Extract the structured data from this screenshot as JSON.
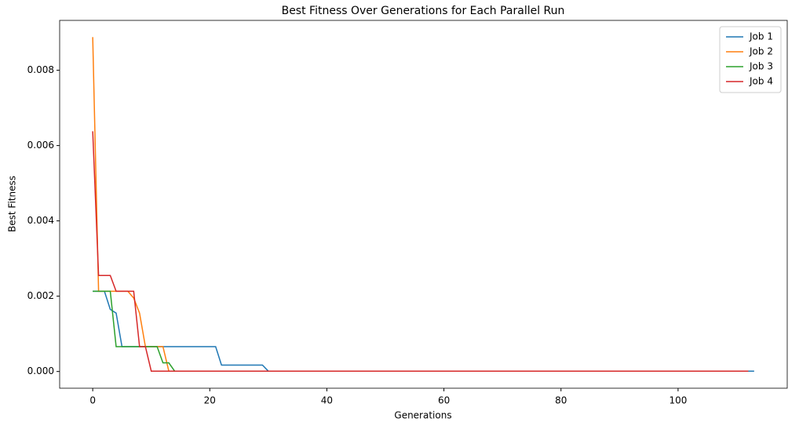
{
  "chart_data": {
    "type": "line",
    "title": "Best Fitness Over Generations for Each Parallel Run",
    "x_label": "Generations",
    "y_label": "Best Fitness",
    "xlim": [
      -5.65,
      118.65
    ],
    "ylim": [
      -0.000444,
      0.009324
    ],
    "xticks": [
      0,
      20,
      40,
      60,
      80,
      100
    ],
    "yticks": [
      {
        "value": 0,
        "label": "0.000"
      },
      {
        "value": 0.002,
        "label": "0.002"
      },
      {
        "value": 0.004,
        "label": "0.004"
      },
      {
        "value": 0.006,
        "label": "0.006"
      },
      {
        "value": 0.008,
        "label": "0.008"
      }
    ],
    "legend": "upper right",
    "series": [
      {
        "name": "Job 1",
        "color": "#1f77b4",
        "x": [
          0,
          2,
          3,
          4,
          5,
          21,
          22,
          29,
          30,
          113
        ],
        "values": [
          0.00213,
          0.00213,
          0.00165,
          0.00155,
          0.00066,
          0.00066,
          0.00017,
          0.00017,
          1e-05,
          1e-05
        ]
      },
      {
        "name": "Job 2",
        "color": "#ff7f0e",
        "x": [
          0,
          1,
          6,
          7,
          8,
          9,
          12,
          13,
          110
        ],
        "values": [
          0.00888,
          0.00213,
          0.00213,
          0.00195,
          0.00155,
          0.00066,
          0.00066,
          1e-05,
          1e-05
        ]
      },
      {
        "name": "Job 3",
        "color": "#2ca02c",
        "x": [
          0,
          3,
          4,
          11,
          12,
          13,
          14,
          112
        ],
        "values": [
          0.00213,
          0.00213,
          0.00066,
          0.00066,
          0.00023,
          0.00023,
          1e-05,
          1e-05
        ]
      },
      {
        "name": "Job 4",
        "color": "#d62728",
        "x": [
          0,
          1,
          3,
          4,
          7,
          8,
          9,
          10,
          112
        ],
        "values": [
          0.00638,
          0.00255,
          0.00255,
          0.00213,
          0.00213,
          0.00066,
          0.00066,
          1e-05,
          1e-05
        ]
      }
    ]
  }
}
